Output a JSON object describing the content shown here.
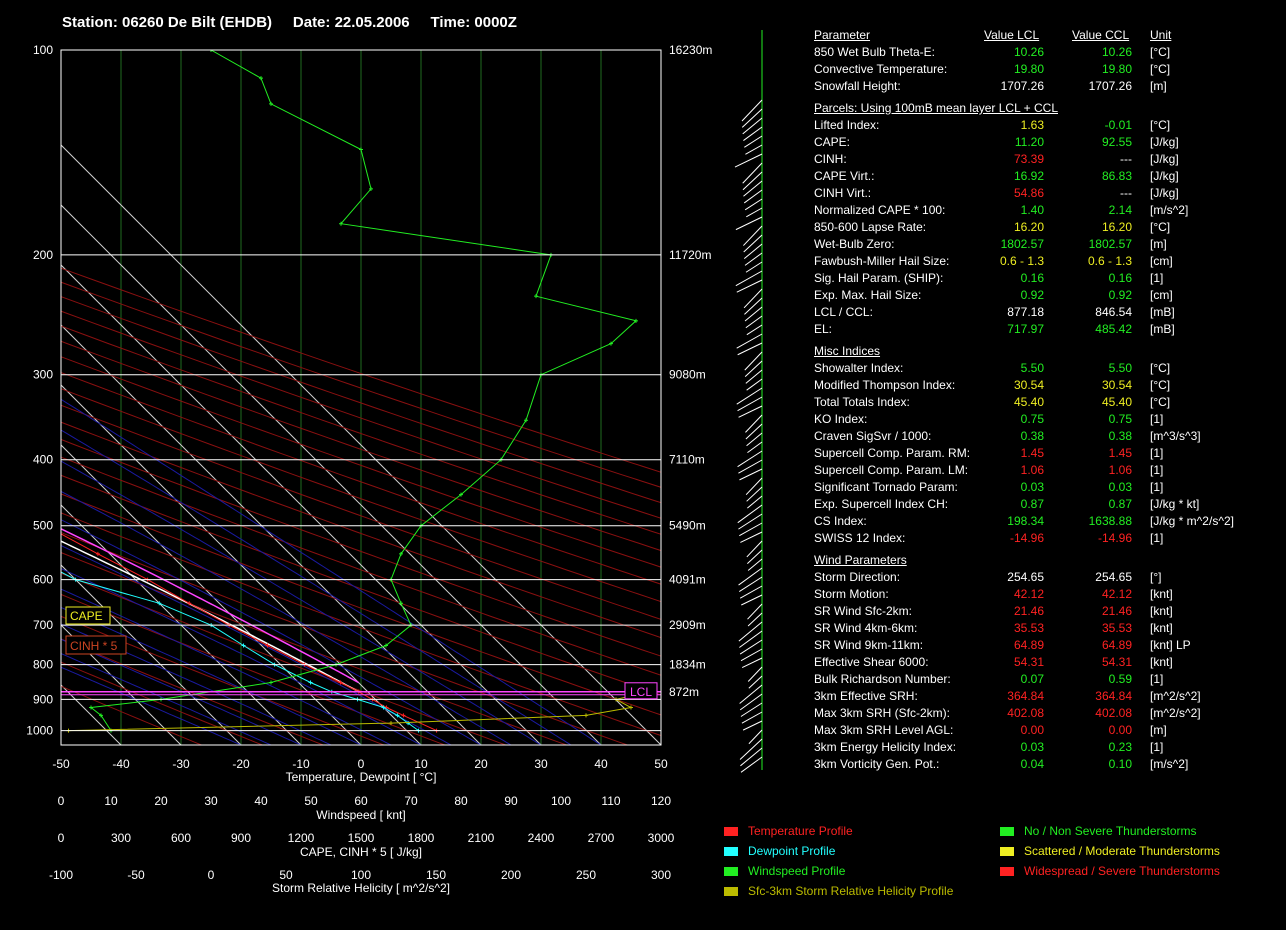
{
  "header": {
    "station": "Station: 06260 De Bilt (EHDB)",
    "date": "Date: 22.05.2006",
    "time": "Time: 0000Z"
  },
  "chart_data": {
    "type": "line",
    "title": "Station: 06260 De Bilt (EHDB)    Date: 22.05.2006    Time: 0000Z",
    "xlabel": "Temperature, Dewpoint  [ °C]",
    "xlim": [
      -50,
      50
    ],
    "x_ticks": [
      "-50",
      "-40",
      "-30",
      "-20",
      "-10",
      "0",
      "10",
      "20",
      "30",
      "40",
      "50"
    ],
    "pressure_labels": [
      "100",
      "200",
      "300",
      "400",
      "500",
      "600",
      "700",
      "800",
      "900",
      "1000"
    ],
    "height_labels": [
      {
        "p": 100,
        "label": "16230m"
      },
      {
        "p": 200,
        "label": "11720m"
      },
      {
        "p": 300,
        "label": "9080m"
      },
      {
        "p": 400,
        "label": "7110m"
      },
      {
        "p": 500,
        "label": "5490m"
      },
      {
        "p": 600,
        "label": "4091m"
      },
      {
        "p": 700,
        "label": "2909m"
      },
      {
        "p": 800,
        "label": "1834m"
      },
      {
        "p": 877,
        "label": "872m"
      }
    ],
    "lcl_label": "LCL",
    "lcl_p": 877,
    "cape_label": "CAPE",
    "cinh_label": "CINH * 5",
    "secondary_axes": [
      {
        "label": "Windspeed  [ knt]",
        "ticks": [
          "0",
          "10",
          "20",
          "30",
          "40",
          "50",
          "60",
          "70",
          "80",
          "90",
          "100",
          "110",
          "120"
        ]
      },
      {
        "label": "CAPE, CINH * 5  [ J/kg]",
        "ticks": [
          "0",
          "300",
          "600",
          "900",
          "1200",
          "1500",
          "1800",
          "2100",
          "2400",
          "2700",
          "3000"
        ]
      },
      {
        "label": "Storm Relative Helicity  [ m^2/s^2]",
        "ticks": [
          "-100",
          "-50",
          "0",
          "50",
          "100",
          "150",
          "200",
          "250",
          "300"
        ]
      }
    ],
    "series": [
      {
        "name": "Temperature Profile",
        "color": "#ff2222",
        "points": [
          [
            1000,
            15
          ],
          [
            950,
            12
          ],
          [
            925,
            10.5
          ],
          [
            900,
            9.5
          ],
          [
            877,
            8.5
          ],
          [
            850,
            7
          ],
          [
            800,
            4
          ],
          [
            750,
            1
          ],
          [
            700,
            -2
          ],
          [
            650,
            -5
          ],
          [
            600,
            -8
          ],
          [
            550,
            -12
          ],
          [
            500,
            -16
          ],
          [
            450,
            -21
          ],
          [
            400,
            -27
          ],
          [
            350,
            -34
          ],
          [
            300,
            -41
          ],
          [
            270,
            -46
          ],
          [
            250,
            -49
          ],
          [
            230,
            -52
          ],
          [
            220,
            -54
          ],
          [
            200,
            -56
          ],
          [
            180,
            -58
          ],
          [
            170,
            -59
          ],
          [
            150,
            -60
          ],
          [
            140,
            -61
          ],
          [
            120,
            -62
          ],
          [
            110,
            -62.5
          ]
        ]
      },
      {
        "name": "Dewpoint Profile",
        "color": "#22ffff",
        "points": [
          [
            1000,
            12
          ],
          [
            975,
            11.5
          ],
          [
            950,
            11
          ],
          [
            925,
            10
          ],
          [
            900,
            7
          ],
          [
            877,
            4
          ],
          [
            850,
            2
          ],
          [
            800,
            -1
          ],
          [
            750,
            -3
          ],
          [
            700,
            -5
          ],
          [
            650,
            -10
          ],
          [
            600,
            -20
          ],
          [
            575,
            -22
          ],
          [
            550,
            -26
          ],
          [
            525,
            -30
          ],
          [
            500,
            -34
          ],
          [
            475,
            -33
          ],
          [
            450,
            -33
          ],
          [
            400,
            -40
          ],
          [
            350,
            -47
          ],
          [
            330,
            -48
          ],
          [
            300,
            -52
          ],
          [
            270,
            -57
          ],
          [
            250,
            -62
          ],
          [
            230,
            -65
          ],
          [
            210,
            -70
          ],
          [
            200,
            -73
          ],
          [
            180,
            -74
          ],
          [
            160,
            -73
          ],
          [
            140,
            -70
          ],
          [
            120,
            -58
          ],
          [
            110,
            -50
          ],
          [
            100,
            -40
          ]
        ]
      },
      {
        "name": "Windspeed Profile",
        "color": "#22ee22",
        "points": [
          [
            1000,
            10
          ],
          [
            950,
            8
          ],
          [
            925,
            6
          ],
          [
            900,
            20
          ],
          [
            850,
            42
          ],
          [
            800,
            55
          ],
          [
            750,
            65
          ],
          [
            700,
            70
          ],
          [
            650,
            68
          ],
          [
            600,
            66
          ],
          [
            550,
            68
          ],
          [
            500,
            72
          ],
          [
            450,
            80
          ],
          [
            400,
            88
          ],
          [
            350,
            93
          ],
          [
            300,
            96
          ],
          [
            270,
            110
          ],
          [
            250,
            115
          ],
          [
            230,
            95
          ],
          [
            200,
            98
          ],
          [
            180,
            56
          ],
          [
            160,
            62
          ],
          [
            140,
            60
          ],
          [
            120,
            42
          ],
          [
            110,
            40
          ],
          [
            100,
            30
          ]
        ]
      },
      {
        "name": "Sfc-3km Storm Relative Helicity Profile",
        "color": "#bbbb00",
        "points": [
          [
            1000,
            -95
          ],
          [
            975,
            120
          ],
          [
            950,
            250
          ],
          [
            925,
            280
          ],
          [
            900,
            270
          ],
          [
            877,
            292
          ]
        ]
      }
    ],
    "parcels": [
      {
        "name": "LCL parcel",
        "color": "#ffffff"
      },
      {
        "name": "CCL parcel",
        "color": "#ff44ff"
      }
    ],
    "wind_profile": {
      "color": "#ffffff",
      "staff_color": "#22ee22"
    },
    "legend": [
      {
        "label": "Temperature Profile",
        "color": "#ff2222"
      },
      {
        "label": "Dewpoint Profile",
        "color": "#22ffff"
      },
      {
        "label": "Windspeed Profile",
        "color": "#22ee22"
      },
      {
        "label": "Sfc-3km Storm Relative Helicity Profile",
        "color": "#bbbb00"
      },
      {
        "label": "No / Non Severe Thunderstorms",
        "color": "#22ee22"
      },
      {
        "label": "Scattered / Moderate Thunderstorms",
        "color": "#eeee22"
      },
      {
        "label": "Widespread / Severe Thunderstorms",
        "color": "#ff2222"
      }
    ]
  },
  "panel": {
    "headers": {
      "param": "Parameter",
      "lcl": "Value LCL",
      "ccl": "Value CCL",
      "unit": "Unit"
    },
    "sections": [
      {
        "title": "",
        "rows": [
          {
            "label": "850 Wet Bulb Theta-E:",
            "v1": "10.26",
            "c1": "green",
            "v2": "10.26",
            "c2": "green",
            "unit": "[°C]"
          },
          {
            "label": "Convective Temperature:",
            "v1": "19.80",
            "c1": "green",
            "v2": "19.80",
            "c2": "green",
            "unit": "[°C]"
          },
          {
            "label": "Snowfall Height:",
            "v1": "1707.26",
            "c1": "white",
            "v2": "1707.26",
            "c2": "white",
            "unit": "[m]"
          }
        ]
      },
      {
        "title": "Parcels: Using 100mB mean layer LCL + CCL",
        "rows": [
          {
            "label": "Lifted Index:",
            "v1": "1.63",
            "c1": "yellow",
            "v2": "-0.01",
            "c2": "green",
            "unit": "[°C]"
          },
          {
            "label": "CAPE:",
            "v1": "11.20",
            "c1": "green",
            "v2": "92.55",
            "c2": "green",
            "unit": "[J/kg]"
          },
          {
            "label": "CINH:",
            "v1": "73.39",
            "c1": "red",
            "v2": "---",
            "c2": "white",
            "unit": "[J/kg]"
          },
          {
            "label": "CAPE Virt.:",
            "v1": "16.92",
            "c1": "green",
            "v2": "86.83",
            "c2": "green",
            "unit": "[J/kg]"
          },
          {
            "label": "CINH Virt.:",
            "v1": "54.86",
            "c1": "red",
            "v2": "---",
            "c2": "white",
            "unit": "[J/kg]"
          },
          {
            "label": "Normalized CAPE * 100:",
            "v1": "1.40",
            "c1": "green",
            "v2": "2.14",
            "c2": "green",
            "unit": "[m/s^2]"
          },
          {
            "label": "850-600 Lapse Rate:",
            "v1": "16.20",
            "c1": "yellow",
            "v2": "16.20",
            "c2": "yellow",
            "unit": "[°C]"
          },
          {
            "label": "Wet-Bulb Zero:",
            "v1": "1802.57",
            "c1": "green",
            "v2": "1802.57",
            "c2": "green",
            "unit": "[m]"
          },
          {
            "label": "Fawbush-Miller Hail Size:",
            "v1": "0.6 - 1.3",
            "c1": "yellow",
            "v2": "0.6 - 1.3",
            "c2": "yellow",
            "unit": "[cm]"
          },
          {
            "label": "Sig. Hail Param. (SHIP):",
            "v1": "0.16",
            "c1": "green",
            "v2": "0.16",
            "c2": "green",
            "unit": "[1]"
          },
          {
            "label": "Exp. Max. Hail Size:",
            "v1": "0.92",
            "c1": "green",
            "v2": "0.92",
            "c2": "green",
            "unit": "[cm]"
          },
          {
            "label": "LCL / CCL:",
            "v1": "877.18",
            "c1": "white",
            "v2": "846.54",
            "c2": "white",
            "unit": "[mB]"
          },
          {
            "label": "EL:",
            "v1": "717.97",
            "c1": "green",
            "v2": "485.42",
            "c2": "green",
            "unit": "[mB]"
          }
        ]
      },
      {
        "title": "Misc Indices",
        "rows": [
          {
            "label": "Showalter Index:",
            "v1": "5.50",
            "c1": "green",
            "v2": "5.50",
            "c2": "green",
            "unit": "[°C]"
          },
          {
            "label": "Modified Thompson Index:",
            "v1": "30.54",
            "c1": "yellow",
            "v2": "30.54",
            "c2": "yellow",
            "unit": "[°C]"
          },
          {
            "label": "Total Totals Index:",
            "v1": "45.40",
            "c1": "yellow",
            "v2": "45.40",
            "c2": "yellow",
            "unit": "[°C]"
          },
          {
            "label": "KO Index:",
            "v1": "0.75",
            "c1": "green",
            "v2": "0.75",
            "c2": "green",
            "unit": "[1]"
          },
          {
            "label": "Craven SigSvr / 1000:",
            "v1": "0.38",
            "c1": "green",
            "v2": "0.38",
            "c2": "green",
            "unit": "[m^3/s^3]"
          },
          {
            "label": "Supercell Comp. Param. RM:",
            "v1": "1.45",
            "c1": "red",
            "v2": "1.45",
            "c2": "red",
            "unit": "[1]"
          },
          {
            "label": "Supercell Comp. Param. LM:",
            "v1": "1.06",
            "c1": "red",
            "v2": "1.06",
            "c2": "red",
            "unit": "[1]"
          },
          {
            "label": "Significant Tornado Param:",
            "v1": "0.03",
            "c1": "green",
            "v2": "0.03",
            "c2": "green",
            "unit": "[1]"
          },
          {
            "label": "Exp. Supercell Index CH:",
            "v1": "0.87",
            "c1": "green",
            "v2": "0.87",
            "c2": "green",
            "unit": "[J/kg * kt]"
          },
          {
            "label": "CS Index:",
            "v1": "198.34",
            "c1": "green",
            "v2": "1638.88",
            "c2": "green",
            "unit": "[J/kg * m^2/s^2]"
          },
          {
            "label": "SWISS 12 Index:",
            "v1": "-14.96",
            "c1": "red",
            "v2": "-14.96",
            "c2": "red",
            "unit": "[1]"
          }
        ]
      },
      {
        "title": "Wind Parameters",
        "rows": [
          {
            "label": "Storm Direction:",
            "v1": "254.65",
            "c1": "white",
            "v2": "254.65",
            "c2": "white",
            "unit": "[°]"
          },
          {
            "label": "Storm Motion:",
            "v1": "42.12",
            "c1": "red",
            "v2": "42.12",
            "c2": "red",
            "unit": "[knt]"
          },
          {
            "label": "SR Wind Sfc-2km:",
            "v1": "21.46",
            "c1": "red",
            "v2": "21.46",
            "c2": "red",
            "unit": "[knt]"
          },
          {
            "label": "SR Wind 4km-6km:",
            "v1": "35.53",
            "c1": "red",
            "v2": "35.53",
            "c2": "red",
            "unit": "[knt]"
          },
          {
            "label": "SR Wind 9km-11km:",
            "v1": "64.89",
            "c1": "red",
            "v2": "64.89",
            "c2": "red",
            "unit": "[knt] LP"
          },
          {
            "label": "Effective Shear 6000:",
            "v1": "54.31",
            "c1": "red",
            "v2": "54.31",
            "c2": "red",
            "unit": "[knt]"
          },
          {
            "label": "Bulk Richardson Number:",
            "v1": "0.07",
            "c1": "green",
            "v2": "0.59",
            "c2": "green",
            "unit": "[1]"
          },
          {
            "label": "3km Effective SRH:",
            "v1": "364.84",
            "c1": "red",
            "v2": "364.84",
            "c2": "red",
            "unit": "[m^2/s^2]"
          },
          {
            "label": "Max 3km SRH (Sfc-2km):",
            "v1": "402.08",
            "c1": "red",
            "v2": "402.08",
            "c2": "red",
            "unit": "[m^2/s^2]"
          },
          {
            "label": "Max 3km SRH Level AGL:",
            "v1": "0.00",
            "c1": "red",
            "v2": "0.00",
            "c2": "red",
            "unit": "[m]"
          },
          {
            "label": "3km Energy Helicity Index:",
            "v1": "0.03",
            "c1": "green",
            "v2": "0.23",
            "c2": "green",
            "unit": "[1]"
          },
          {
            "label": "3km Vorticity Gen. Pot.:",
            "v1": "0.04",
            "c1": "green",
            "v2": "0.10",
            "c2": "green",
            "unit": "[m/s^2]"
          }
        ]
      }
    ]
  }
}
